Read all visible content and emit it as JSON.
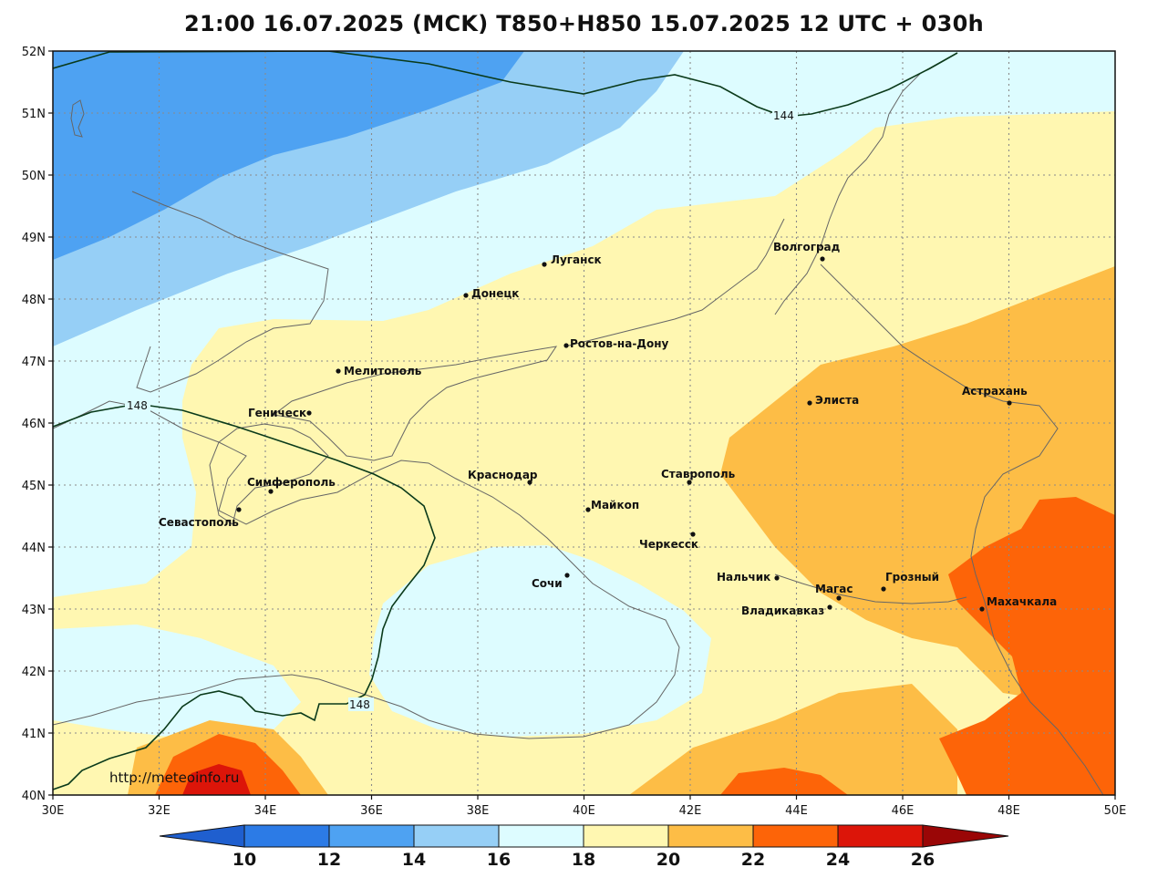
{
  "title": "21:00 16.07.2025 (MCK) T850+H850 15.07.2025 12 UTC + 030h",
  "source_credit": "http://meteoinfo.ru",
  "map": {
    "lon_range": [
      30,
      50
    ],
    "lat_range": [
      40,
      52
    ],
    "x_ticks": [
      "30E",
      "32E",
      "34E",
      "36E",
      "38E",
      "40E",
      "42E",
      "44E",
      "46E",
      "48E",
      "50E"
    ],
    "y_ticks": [
      "40N",
      "41N",
      "42N",
      "43N",
      "44N",
      "45N",
      "46N",
      "47N",
      "48N",
      "49N",
      "50N",
      "51N",
      "52N"
    ],
    "grid": true
  },
  "cities": [
    {
      "name": "Луганск",
      "lon": 39.3,
      "lat": 48.57
    },
    {
      "name": "Донецк",
      "lon": 37.8,
      "lat": 48.0
    },
    {
      "name": "Волгоград",
      "lon": 44.5,
      "lat": 48.7
    },
    {
      "name": "Ростов-на-Дону",
      "lon": 39.7,
      "lat": 47.23
    },
    {
      "name": "Мелитополь",
      "lon": 35.37,
      "lat": 46.85
    },
    {
      "name": "Геническ",
      "lon": 34.8,
      "lat": 46.17
    },
    {
      "name": "Элиста",
      "lon": 44.27,
      "lat": 46.31
    },
    {
      "name": "Астрахань",
      "lon": 48.03,
      "lat": 46.35
    },
    {
      "name": "Краснодар",
      "lon": 38.98,
      "lat": 45.04
    },
    {
      "name": "Ставрополь",
      "lon": 41.97,
      "lat": 45.04
    },
    {
      "name": "Симферополь",
      "lon": 34.1,
      "lat": 44.95
    },
    {
      "name": "Майкоп",
      "lon": 40.1,
      "lat": 44.61
    },
    {
      "name": "Севастополь",
      "lon": 33.52,
      "lat": 44.6
    },
    {
      "name": "Черкесск",
      "lon": 42.05,
      "lat": 44.22
    },
    {
      "name": "Сочи",
      "lon": 39.72,
      "lat": 43.59
    },
    {
      "name": "Нальчик",
      "lon": 43.6,
      "lat": 43.49
    },
    {
      "name": "Магас",
      "lon": 44.81,
      "lat": 43.17
    },
    {
      "name": "Грозный",
      "lon": 45.69,
      "lat": 43.32
    },
    {
      "name": "Владикавказ",
      "lon": 44.67,
      "lat": 43.02
    },
    {
      "name": "Махачкала",
      "lon": 47.5,
      "lat": 42.98
    }
  ],
  "isolines": [
    {
      "label": "144",
      "unit": "gpdam"
    },
    {
      "label": "148",
      "unit": "gpdam"
    },
    {
      "label": "148",
      "unit": "gpdam"
    }
  ],
  "colorbar": {
    "ticks": [
      "10",
      "12",
      "14",
      "16",
      "18",
      "20",
      "22",
      "24",
      "26"
    ],
    "colors": [
      "#1f5fcf",
      "#2c7be6",
      "#4ea2f2",
      "#96cff6",
      "#ddfcff",
      "#fff7b1",
      "#fdbd46",
      "#fd6408",
      "#dc1509",
      "#9a0606"
    ]
  },
  "chart_data": {
    "type": "heatmap",
    "title": "21:00 16.07.2025 (MCK) T850+H850 15.07.2025 12 UTC + 030h",
    "variable": "T850",
    "xlabel": "",
    "ylabel": "",
    "xlim": [
      30,
      50
    ],
    "ylim": [
      40,
      52
    ],
    "levels": [
      10,
      12,
      14,
      16,
      18,
      20,
      22,
      24,
      26
    ],
    "isoline_values": [
      144,
      148
    ]
  }
}
